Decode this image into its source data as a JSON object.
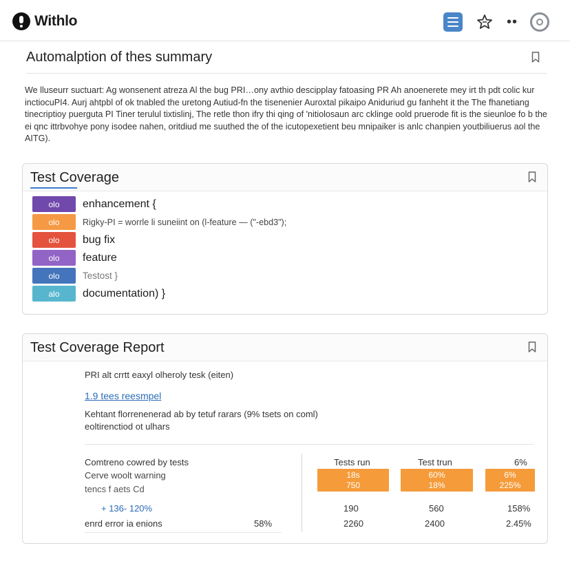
{
  "app": {
    "name": "Withlo"
  },
  "summary": {
    "title": "Automalption of thes summary",
    "body": "We lluseurr suctuart: Ag wonsenent atreza Al the bug PRI…ony avthio descipplay fatoasing PR Ah anoenerete mey irt th pdt colic kur inctiocuPI4. Aurj ahtpbl of ok tnabled the uretong Autiud-fn the tisenenier Auroxtal pikaipo Aniduriud gu fanheht it the The fhanetiang tinecriptioy puerguta PI Tiner terulul tixtislinj, The retle thon ifry thi qing of 'nitiolosaun arc cklinge oold pruerode fit is the sieunloe fo b the ei qnc ittrbvohye pony isodee nahen, oritdiud me suuthed the of the icutopexetient beu mnipaiker is anlc chanpien youtbiliuerus aol the AITG)."
  },
  "coverage": {
    "title": "Test Coverage",
    "labels": [
      {
        "swatch": "olo",
        "text": "enhancement {",
        "color": "#6a3fa8"
      },
      {
        "swatch": "olo",
        "text": "Rigky-PI = worrle li suneiint on (l-feature — (\"-ebd3\");",
        "color": "#f5943a"
      },
      {
        "swatch": "olo",
        "text": "bug fix",
        "color": "#e34a33"
      },
      {
        "swatch": "olo",
        "text": "feature",
        "color": "#8d5cc4"
      },
      {
        "swatch": "olo",
        "text": "Testost }",
        "color": "#3a6db8"
      },
      {
        "swatch": "alo",
        "text": "documentation) }",
        "color": "#4fb3cc"
      }
    ]
  },
  "report": {
    "title": "Test Coverage Report",
    "line1": "PRI alt crrtt eaxyl olheroly tesk (eiten)",
    "link": "1.9 tees reesmpel",
    "line2": "Kehtant florrenenerad ab by tetuf rarars (9% tsets on coml)",
    "line3": "eoltirenctiod ot ulhars",
    "left": {
      "row1": "Comtreno cowred by tests",
      "row2": "Cerve woolt warning",
      "row3": "tencs f aets Cd",
      "row4": "+ 136- 120%",
      "row5_label": "enrd error ia enions",
      "row5_value": "58%"
    },
    "columns": [
      "Tests run",
      "Test trun",
      "6%"
    ],
    "boxes": [
      {
        "top": "18s",
        "bottom": "750"
      },
      {
        "top": "60%",
        "bottom": "18%"
      },
      {
        "top": "6%",
        "bottom": "225%"
      }
    ],
    "row_a": [
      "190",
      "560",
      "158%"
    ],
    "row_b": [
      "2260",
      "2400",
      "2.45%"
    ]
  }
}
